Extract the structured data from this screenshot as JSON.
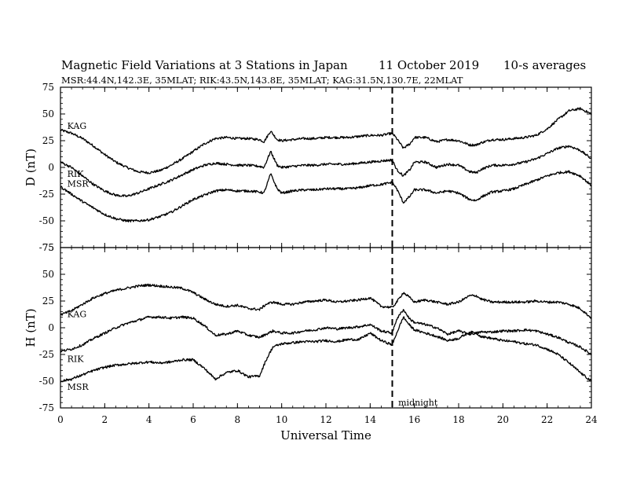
{
  "header": {
    "title": "Magnetic Field Variations at 3 Stations in Japan",
    "date": "11 October 2019",
    "averaging": "10-s averages",
    "stations": "MSR:44.4N,142.3E, 35MLAT;  RIK:43.5N,143.8E, 35MLAT;  KAG:31.5N,130.7E, 22MLAT"
  },
  "chart_data": [
    {
      "type": "line",
      "panel": "D",
      "ylabel": "D (nT)",
      "ylim": [
        -75,
        75
      ],
      "yticks": [
        -75,
        -50,
        -25,
        0,
        25,
        50,
        75
      ],
      "xlim": [
        0,
        24
      ],
      "xticks": [
        0,
        2,
        4,
        6,
        8,
        10,
        12,
        14,
        16,
        18,
        20,
        22,
        24
      ],
      "xlabel": "",
      "grid": false,
      "series": [
        {
          "name": "KAG",
          "x": [
            0,
            0.5,
            1,
            1.5,
            2,
            2.5,
            3,
            3.5,
            4,
            4.5,
            5,
            5.5,
            6,
            6.5,
            7,
            7.5,
            8,
            8.5,
            9,
            9.2,
            9.5,
            9.8,
            10,
            10.5,
            11,
            11.5,
            12,
            12.5,
            13,
            13.5,
            14,
            14.5,
            15,
            15.2,
            15.5,
            15.8,
            16,
            16.5,
            17,
            17.5,
            18,
            18.5,
            18.8,
            19,
            19.5,
            20,
            20.5,
            21,
            21.5,
            22,
            22.5,
            23,
            23.5,
            24
          ],
          "values": [
            35,
            32,
            27,
            20,
            12,
            5,
            0,
            -4,
            -5,
            -3,
            2,
            8,
            15,
            22,
            27,
            28,
            27,
            27,
            26,
            24,
            34,
            26,
            25,
            26,
            27,
            27,
            28,
            28,
            28,
            29,
            30,
            30,
            32,
            27,
            18,
            22,
            28,
            28,
            24,
            26,
            25,
            21,
            21,
            23,
            26,
            26,
            27,
            28,
            30,
            36,
            45,
            53,
            55,
            50
          ]
        },
        {
          "name": "RIK",
          "x": [
            0,
            0.5,
            1,
            1.5,
            2,
            2.5,
            3,
            3.5,
            4,
            4.5,
            5,
            5.5,
            6,
            6.5,
            7,
            7.5,
            8,
            8.5,
            9,
            9.2,
            9.5,
            9.8,
            10,
            10.5,
            11,
            11.5,
            12,
            12.5,
            13,
            13.5,
            14,
            14.5,
            15,
            15.2,
            15.5,
            15.8,
            16,
            16.5,
            17,
            17.5,
            18,
            18.5,
            18.8,
            19,
            19.5,
            20,
            20.5,
            21,
            21.5,
            22,
            22.5,
            23,
            23.5,
            24
          ],
          "values": [
            5,
            0,
            -8,
            -16,
            -22,
            -26,
            -27,
            -24,
            -20,
            -16,
            -12,
            -7,
            -2,
            2,
            4,
            3,
            2,
            2,
            1,
            0,
            15,
            2,
            0,
            1,
            2,
            2,
            3,
            3,
            3,
            4,
            5,
            6,
            7,
            -2,
            -8,
            -2,
            5,
            5,
            0,
            3,
            2,
            -4,
            -5,
            -2,
            2,
            2,
            3,
            5,
            8,
            13,
            18,
            20,
            16,
            8
          ]
        },
        {
          "name": "MSR",
          "x": [
            0,
            0.5,
            1,
            1.5,
            2,
            2.5,
            3,
            3.5,
            4,
            4.5,
            5,
            5.5,
            6,
            6.5,
            7,
            7.5,
            8,
            8.5,
            9,
            9.2,
            9.5,
            9.8,
            10,
            10.5,
            11,
            11.5,
            12,
            12.5,
            13,
            13.5,
            14,
            14.5,
            15,
            15.2,
            15.5,
            15.8,
            16,
            16.5,
            17,
            17.5,
            18,
            18.5,
            18.8,
            19,
            19.5,
            20,
            20.5,
            21,
            21.5,
            22,
            22.5,
            23,
            23.5,
            24
          ],
          "values": [
            -18,
            -25,
            -32,
            -38,
            -44,
            -48,
            -50,
            -50,
            -49,
            -46,
            -42,
            -36,
            -30,
            -26,
            -22,
            -21,
            -22,
            -22,
            -23,
            -24,
            -6,
            -20,
            -24,
            -22,
            -21,
            -21,
            -20,
            -20,
            -20,
            -19,
            -17,
            -16,
            -14,
            -20,
            -33,
            -27,
            -21,
            -21,
            -24,
            -22,
            -24,
            -30,
            -31,
            -28,
            -23,
            -22,
            -20,
            -16,
            -12,
            -8,
            -5,
            -4,
            -8,
            -17
          ]
        }
      ],
      "annotations": [
        {
          "text": "KAG",
          "x": 0.2,
          "y": 39
        },
        {
          "text": "RIK",
          "x": 0.2,
          "y": -6
        },
        {
          "text": "MSR",
          "x": 0.2,
          "y": -15
        }
      ],
      "vline": {
        "x": 15,
        "style": "dashed"
      }
    },
    {
      "type": "line",
      "panel": "H",
      "ylabel": "H (nT)",
      "ylim": [
        -75,
        75
      ],
      "yticks": [
        -75,
        -50,
        -25,
        0,
        25,
        50,
        75
      ],
      "xlim": [
        0,
        24
      ],
      "xticks": [
        0,
        2,
        4,
        6,
        8,
        10,
        12,
        14,
        16,
        18,
        20,
        22,
        24
      ],
      "xlabel": "Universal Time",
      "grid": false,
      "series": [
        {
          "name": "KAG",
          "x": [
            0,
            0.5,
            1,
            1.5,
            2,
            2.5,
            3,
            3.5,
            4,
            4.5,
            5,
            5.5,
            6,
            6.5,
            7,
            7.5,
            8,
            8.5,
            9,
            9.3,
            9.6,
            10,
            10.5,
            11,
            11.5,
            12,
            12.5,
            13,
            13.5,
            14,
            14.5,
            15,
            15.2,
            15.5,
            15.8,
            16,
            16.5,
            17,
            17.5,
            18,
            18.5,
            18.8,
            19,
            19.5,
            20,
            20.5,
            21,
            21.5,
            22,
            22.5,
            23,
            23.5,
            24
          ],
          "values": [
            12,
            16,
            22,
            28,
            32,
            35,
            37,
            39,
            40,
            39,
            38,
            37,
            33,
            27,
            22,
            20,
            21,
            18,
            17,
            22,
            24,
            22,
            22,
            24,
            25,
            26,
            24,
            25,
            26,
            28,
            20,
            19,
            24,
            33,
            28,
            24,
            26,
            24,
            22,
            24,
            30,
            30,
            27,
            24,
            24,
            24,
            24,
            25,
            24,
            24,
            22,
            18,
            9
          ]
        },
        {
          "name": "RIK",
          "x": [
            0,
            0.5,
            1,
            1.5,
            2,
            2.5,
            3,
            3.5,
            4,
            4.5,
            5,
            5.5,
            6,
            6.5,
            7,
            7.5,
            8,
            8.5,
            9,
            9.3,
            9.6,
            10,
            10.5,
            11,
            11.5,
            12,
            12.5,
            13,
            13.5,
            14,
            14.5,
            15,
            15.2,
            15.5,
            15.8,
            16,
            16.5,
            17,
            17.5,
            18,
            18.5,
            18.8,
            19,
            19.5,
            20,
            20.5,
            21,
            21.5,
            22,
            22.5,
            23,
            23.5,
            24
          ],
          "values": [
            -22,
            -20,
            -16,
            -10,
            -5,
            0,
            4,
            7,
            10,
            10,
            9,
            10,
            9,
            2,
            -7,
            -6,
            -3,
            -7,
            -9,
            -6,
            -3,
            -5,
            -5,
            -3,
            -2,
            0,
            -1,
            0,
            1,
            3,
            -3,
            -5,
            8,
            17,
            8,
            5,
            3,
            0,
            -6,
            -3,
            -6,
            -5,
            -4,
            -4,
            -3,
            -3,
            -2,
            -3,
            -6,
            -9,
            -14,
            -18,
            -25
          ]
        },
        {
          "name": "MSR",
          "x": [
            0,
            0.5,
            1,
            1.5,
            2,
            2.5,
            3,
            3.5,
            4,
            4.5,
            5,
            5.5,
            6,
            6.5,
            7,
            7.5,
            8,
            8.5,
            9,
            9.3,
            9.6,
            10,
            10.5,
            11,
            11.5,
            12,
            12.5,
            13,
            13.5,
            14,
            14.5,
            15,
            15.2,
            15.5,
            15.8,
            16,
            16.5,
            17,
            17.5,
            18,
            18.5,
            18.8,
            19,
            19.5,
            20,
            20.5,
            21,
            21.5,
            22,
            22.5,
            23,
            23.5,
            24
          ],
          "values": [
            -50,
            -48,
            -44,
            -40,
            -37,
            -35,
            -34,
            -33,
            -32,
            -33,
            -32,
            -30,
            -30,
            -38,
            -48,
            -42,
            -40,
            -46,
            -45,
            -30,
            -18,
            -15,
            -14,
            -13,
            -13,
            -12,
            -13,
            -11,
            -11,
            -5,
            -12,
            -16,
            -5,
            10,
            2,
            -2,
            -5,
            -8,
            -12,
            -10,
            -4,
            -5,
            -8,
            -10,
            -12,
            -13,
            -15,
            -16,
            -20,
            -25,
            -33,
            -42,
            -50
          ]
        }
      ],
      "annotations": [
        {
          "text": "KAG",
          "x": 0.2,
          "y": 13
        },
        {
          "text": "RIK",
          "x": 0.2,
          "y": -29
        },
        {
          "text": "MSR",
          "x": 0.2,
          "y": -55
        },
        {
          "text": "midnight",
          "x": 15.2,
          "y": -70
        }
      ],
      "vline": {
        "x": 15,
        "style": "dashed"
      }
    }
  ]
}
